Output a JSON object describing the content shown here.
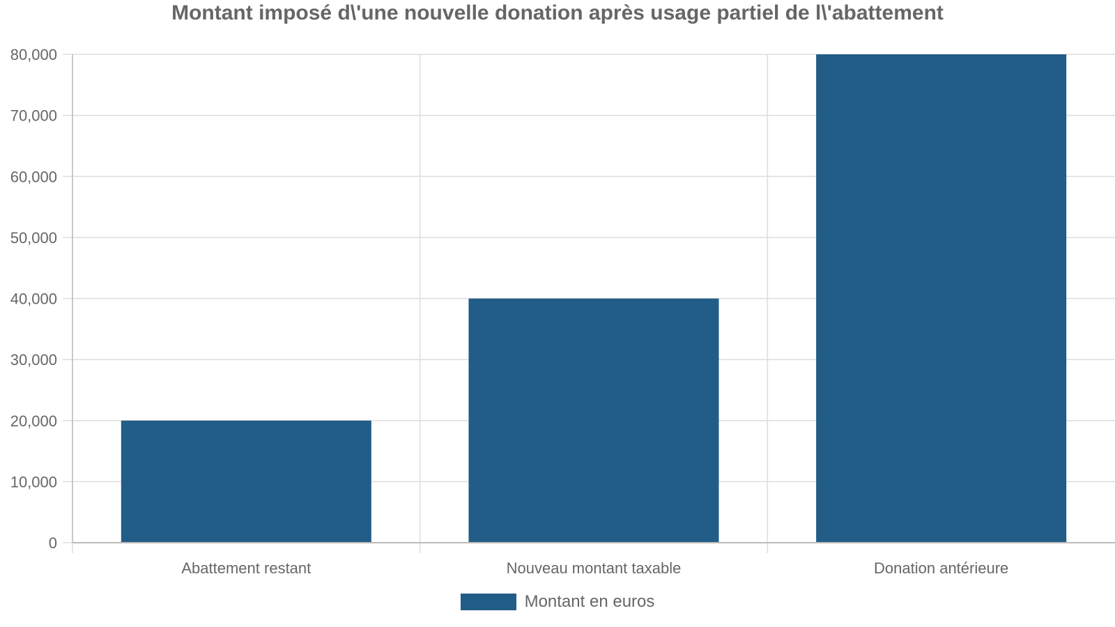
{
  "chart_data": {
    "type": "bar",
    "title": "Montant imposé d\\'une nouvelle donation après usage partiel de l\\'abattement",
    "categories": [
      "Abattement restant",
      "Nouveau montant taxable",
      "Donation antérieure"
    ],
    "series": [
      {
        "name": "Montant en euros",
        "values": [
          20000,
          40000,
          80000
        ],
        "color": "#215d87"
      }
    ],
    "ylim": [
      0,
      80000
    ],
    "yticks": [
      0,
      10000,
      20000,
      30000,
      40000,
      50000,
      60000,
      70000,
      80000
    ],
    "ytick_labels": [
      "0",
      "10,000",
      "20,000",
      "30,000",
      "40,000",
      "50,000",
      "60,000",
      "70,000",
      "80,000"
    ],
    "xlabel": "",
    "ylabel": "",
    "grid": true,
    "legend_position": "bottom"
  },
  "colors": {
    "bar": "#215d87",
    "grid": "#dddddd",
    "axis": "#bbbbbb",
    "text": "#666666"
  }
}
